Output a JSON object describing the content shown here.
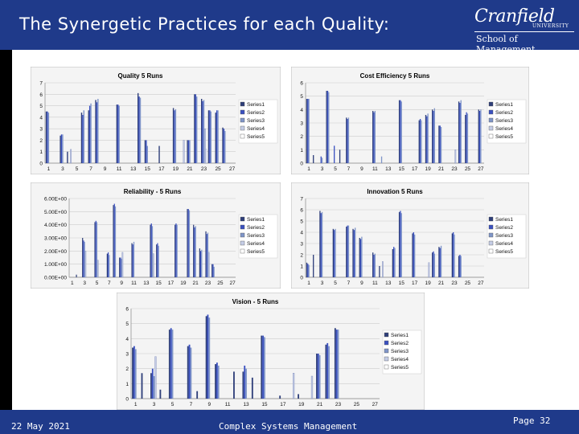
{
  "header": {
    "title": "The Synergetic Practices for each Quality:"
  },
  "logo": {
    "main": "Cranfield",
    "university": "UNIVERSITY",
    "school": "School of Management"
  },
  "footer": {
    "date": "22 May 2021",
    "course": "Complex Systems Management",
    "page": "Page 32"
  },
  "colors": {
    "header_bg": "#1f3a8a",
    "series": [
      "#2f3f7a",
      "#3a50c0",
      "#7f95c8",
      "#c5cde6",
      "#ffffff"
    ]
  },
  "chart_data": [
    {
      "type": "bar",
      "title": "Quality 5 Runs",
      "ylim": [
        0,
        7
      ],
      "yticks": [
        "0",
        "1",
        "2",
        "3",
        "4",
        "5",
        "6",
        "7"
      ],
      "xticks": [
        "1",
        "3",
        "5",
        "7",
        "9",
        "11",
        "13",
        "15",
        "17",
        "19",
        "21",
        "23",
        "25",
        "27"
      ],
      "legend": [
        "Series1",
        "Series2",
        "Series3",
        "Series4",
        "Series5"
      ],
      "series": [
        {
          "name": "Series1",
          "values": [
            4.5,
            0,
            2.4,
            1,
            0,
            4.4,
            4.6,
            5.5,
            0,
            0,
            5.1,
            0,
            0,
            6.1,
            2.0,
            0,
            1.5,
            0,
            4.8,
            0,
            2.0,
            6.0,
            5.6,
            4.6,
            4.4,
            3.1,
            0
          ]
        },
        {
          "name": "Series2",
          "values": [
            4.5,
            0,
            2.5,
            0,
            0,
            4.2,
            5.0,
            5.3,
            0,
            0,
            5.1,
            0,
            0,
            5.8,
            2.0,
            0,
            0,
            0,
            4.6,
            0,
            2.0,
            6.0,
            5.4,
            4.6,
            4.6,
            3.0,
            0
          ]
        },
        {
          "name": "Series3",
          "values": [
            4.4,
            0,
            2.5,
            0,
            0,
            4.6,
            5.2,
            5.6,
            0,
            0,
            5.0,
            0,
            0,
            5.7,
            1.5,
            0,
            0,
            0,
            4.7,
            0,
            2.0,
            5.8,
            5.5,
            4.5,
            4.6,
            2.8,
            0
          ]
        },
        {
          "name": "Series4",
          "values": [
            0,
            0,
            0,
            1.2,
            0,
            0,
            0,
            0,
            0,
            0,
            0,
            0,
            0,
            0,
            0,
            0,
            0,
            0,
            0,
            2.0,
            0,
            0,
            3.0,
            0,
            0,
            0,
            0
          ]
        },
        {
          "name": "Series5",
          "values": [
            0,
            0,
            0,
            0,
            0,
            0,
            0,
            0,
            0,
            0,
            0,
            0,
            0,
            0,
            0,
            0,
            0,
            0,
            0,
            0,
            0,
            0,
            1.2,
            0,
            0,
            0,
            0
          ]
        }
      ]
    },
    {
      "type": "bar",
      "title": "Cost Efficiency 5 Runs",
      "ylim": [
        0,
        6
      ],
      "yticks": [
        "0",
        "1",
        "2",
        "3",
        "4",
        "5",
        "6"
      ],
      "xticks": [
        "1",
        "3",
        "5",
        "7",
        "9",
        "11",
        "13",
        "15",
        "17",
        "19",
        "21",
        "23",
        "25",
        "27"
      ],
      "legend": [
        "Series1",
        "Series2",
        "Series3",
        "Series4",
        "Series5"
      ],
      "series": [
        {
          "name": "Series1",
          "values": [
            4.8,
            0.6,
            0,
            5.4,
            0,
            1.0,
            3.4,
            0,
            0,
            0,
            3.9,
            0,
            0,
            0,
            4.7,
            0,
            0,
            3.2,
            3.6,
            4.0,
            2.8,
            0,
            0,
            4.6,
            3.6,
            0,
            4.0
          ]
        },
        {
          "name": "Series2",
          "values": [
            4.8,
            0,
            0.5,
            5.4,
            1.3,
            0,
            3.3,
            0,
            0,
            0,
            3.8,
            0,
            0,
            0,
            4.7,
            0,
            0,
            3.3,
            3.5,
            3.9,
            2.8,
            0,
            0,
            4.5,
            3.8,
            0,
            3.9
          ]
        },
        {
          "name": "Series3",
          "values": [
            4.8,
            0,
            0.4,
            5.3,
            0,
            0,
            3.4,
            0,
            0,
            0,
            3.9,
            0.5,
            0,
            0,
            4.6,
            0,
            0,
            3.2,
            3.7,
            4.1,
            2.7,
            0,
            0,
            4.7,
            3.7,
            0,
            4.0
          ]
        },
        {
          "name": "Series4",
          "values": [
            0,
            0,
            0,
            0,
            0,
            0,
            0,
            0,
            0,
            0,
            0,
            0,
            0,
            0,
            0,
            0,
            0,
            0,
            0,
            0,
            0,
            0,
            1.0,
            0,
            0,
            0,
            0
          ]
        },
        {
          "name": "Series5",
          "values": [
            0,
            0,
            0,
            0,
            0,
            0,
            0,
            0,
            0,
            0,
            0,
            0,
            0,
            0,
            0,
            0,
            0,
            0,
            0,
            0,
            0,
            0,
            0,
            0,
            0,
            0,
            0
          ]
        }
      ]
    },
    {
      "type": "bar",
      "title": "Reliability - 5 Runs",
      "ylim": [
        0,
        6
      ],
      "yticks": [
        "0.00E+00",
        "1.00E+00",
        "2.00E+00",
        "3.00E+00",
        "4.00E+00",
        "5.00E+00",
        "6.00E+00"
      ],
      "xticks": [
        "1",
        "3",
        "5",
        "7",
        "9",
        "11",
        "13",
        "15",
        "17",
        "19",
        "21",
        "23",
        "25",
        "27"
      ],
      "legend": [
        "Series1",
        "Series2",
        "Series3",
        "Series4",
        "Series5"
      ],
      "series": [
        {
          "name": "Series1",
          "values": [
            0,
            0.2,
            3.0,
            0,
            4.2,
            0,
            1.8,
            5.5,
            1.5,
            0,
            2.6,
            0,
            0,
            4.0,
            2.5,
            0,
            0,
            4.0,
            0,
            5.2,
            4.0,
            2.2,
            3.5,
            1.0,
            0,
            0,
            0
          ]
        },
        {
          "name": "Series2",
          "values": [
            0,
            0,
            2.8,
            0,
            4.3,
            0,
            1.9,
            5.6,
            1.5,
            0,
            2.5,
            0,
            0,
            4.1,
            2.6,
            0,
            0,
            4.1,
            0,
            5.2,
            3.8,
            2.0,
            3.3,
            1.0,
            0,
            0,
            0
          ]
        },
        {
          "name": "Series3",
          "values": [
            0,
            0,
            2.7,
            0,
            4.2,
            0,
            1.7,
            5.4,
            1.4,
            0,
            2.7,
            0,
            0,
            3.9,
            2.4,
            0,
            0,
            4.0,
            0,
            5.1,
            3.9,
            2.1,
            3.4,
            0.8,
            0,
            0,
            0
          ]
        },
        {
          "name": "Series4",
          "values": [
            0,
            0,
            2.0,
            0,
            1.3,
            0,
            0,
            0,
            1.9,
            0,
            0,
            0,
            0,
            1.8,
            0,
            0,
            0,
            0,
            0,
            0,
            0,
            0,
            1.9,
            0,
            0,
            0,
            0
          ]
        },
        {
          "name": "Series5",
          "values": [
            0,
            0,
            0,
            0,
            0,
            0,
            0,
            0,
            0,
            0,
            0,
            0,
            0,
            0,
            0,
            0,
            0,
            0,
            0,
            0,
            0,
            0,
            0,
            0,
            0,
            0,
            0
          ]
        }
      ]
    },
    {
      "type": "bar",
      "title": "Innovation 5 Runs",
      "ylim": [
        0,
        7
      ],
      "yticks": [
        "0",
        "1",
        "2",
        "3",
        "4",
        "5",
        "6",
        "7"
      ],
      "xticks": [
        "1",
        "3",
        "5",
        "7",
        "9",
        "11",
        "13",
        "15",
        "17",
        "19",
        "21",
        "23",
        "25",
        "27"
      ],
      "legend": [
        "Series1",
        "Series2",
        "Series3",
        "Series4",
        "Series5"
      ],
      "series": [
        {
          "name": "Series1",
          "values": [
            1.3,
            2.0,
            5.9,
            0,
            4.3,
            0,
            4.5,
            4.3,
            3.5,
            0,
            2.2,
            1.0,
            0,
            2.5,
            5.8,
            0,
            3.9,
            0,
            0,
            2.2,
            2.7,
            0,
            3.9,
            1.9,
            0,
            0,
            0
          ]
        },
        {
          "name": "Series2",
          "values": [
            1.2,
            0,
            5.7,
            0,
            4.2,
            0,
            4.6,
            4.2,
            3.4,
            0,
            2.0,
            0,
            0,
            2.7,
            5.9,
            0,
            4.0,
            0,
            0,
            2.3,
            2.6,
            0,
            4.0,
            2.0,
            0,
            0,
            0
          ]
        },
        {
          "name": "Series3",
          "values": [
            1.1,
            0,
            5.8,
            0,
            4.3,
            0,
            4.6,
            4.4,
            3.6,
            0,
            2.1,
            0,
            0,
            2.6,
            5.7,
            0,
            3.8,
            0,
            0,
            2.1,
            2.8,
            0,
            3.8,
            1.9,
            0,
            0,
            0
          ]
        },
        {
          "name": "Series4",
          "values": [
            0,
            0,
            0,
            0,
            0,
            0,
            0,
            0,
            0,
            0,
            0,
            1.4,
            0,
            0,
            0,
            0,
            0,
            0,
            1.3,
            0,
            0,
            0,
            0,
            0,
            0,
            0,
            0
          ]
        },
        {
          "name": "Series5",
          "values": [
            0,
            0,
            0,
            0,
            0,
            0,
            0,
            0,
            0,
            0,
            0,
            0,
            0,
            0,
            0,
            0,
            0,
            0,
            0,
            0,
            0,
            0,
            0,
            0,
            0,
            0,
            0
          ]
        }
      ]
    },
    {
      "type": "bar",
      "title": "Vision - 5 Runs",
      "ylim": [
        0,
        6
      ],
      "yticks": [
        "0",
        "1",
        "2",
        "3",
        "4",
        "5",
        "6"
      ],
      "xticks": [
        "1",
        "3",
        "5",
        "7",
        "9",
        "11",
        "13",
        "15",
        "17",
        "19",
        "21",
        "23",
        "25",
        "27"
      ],
      "legend": [
        "Series1",
        "Series2",
        "Series3",
        "Series4",
        "Series5"
      ],
      "series": [
        {
          "name": "Series1",
          "values": [
            3.4,
            1.7,
            1.7,
            0.6,
            4.6,
            0,
            3.5,
            0.5,
            5.5,
            2.3,
            0,
            1.8,
            1.8,
            1.4,
            4.2,
            0,
            0.2,
            0,
            0.3,
            0,
            3.0,
            3.6,
            4.7,
            0,
            0,
            0,
            0
          ]
        },
        {
          "name": "Series2",
          "values": [
            3.5,
            0,
            2.0,
            0,
            4.7,
            0,
            3.6,
            0,
            5.6,
            2.4,
            0,
            0,
            2.2,
            0,
            4.2,
            0,
            0,
            0,
            0,
            0,
            3.0,
            3.7,
            4.6,
            0,
            0,
            0,
            0
          ]
        },
        {
          "name": "Series3",
          "values": [
            3.3,
            0,
            1.5,
            0,
            4.6,
            0,
            3.4,
            0,
            5.4,
            2.2,
            0,
            0,
            2.0,
            0,
            4.1,
            0,
            0,
            0,
            0,
            0,
            2.9,
            3.5,
            4.6,
            0,
            0,
            0,
            0
          ]
        },
        {
          "name": "Series4",
          "values": [
            0,
            0,
            2.8,
            0,
            0,
            0,
            0,
            0,
            0,
            0,
            0,
            0,
            0,
            0,
            0,
            0,
            0,
            1.7,
            0,
            1.5,
            0,
            0,
            0,
            0,
            0,
            0,
            0
          ]
        },
        {
          "name": "Series5",
          "values": [
            0,
            0,
            0,
            0,
            0,
            0,
            0,
            0,
            0,
            0,
            0,
            0,
            0,
            0,
            0,
            0,
            0,
            0,
            0,
            0,
            0,
            0,
            0,
            0,
            0,
            0,
            0
          ]
        }
      ]
    }
  ]
}
